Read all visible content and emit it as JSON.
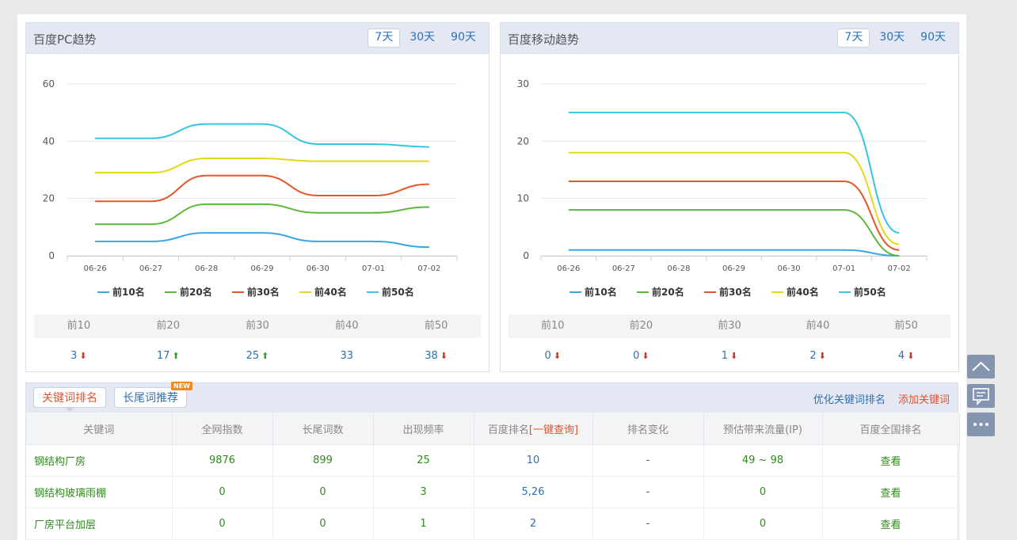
{
  "pc_panel": {
    "title": "百度PC趋势",
    "tabs": [
      "7天",
      "30天",
      "90天"
    ],
    "active_tab": 0,
    "summary_labels": [
      "前10",
      "前20",
      "前30",
      "前40",
      "前50"
    ],
    "summary_values": [
      {
        "value": "3",
        "trend": "down"
      },
      {
        "value": "17",
        "trend": "up"
      },
      {
        "value": "25",
        "trend": "up"
      },
      {
        "value": "33",
        "trend": "none"
      },
      {
        "value": "38",
        "trend": "down"
      }
    ]
  },
  "mobile_panel": {
    "title": "百度移动趋势",
    "tabs": [
      "7天",
      "30天",
      "90天"
    ],
    "active_tab": 0,
    "summary_labels": [
      "前10",
      "前20",
      "前30",
      "前40",
      "前50"
    ],
    "summary_values": [
      {
        "value": "0",
        "trend": "down"
      },
      {
        "value": "0",
        "trend": "down"
      },
      {
        "value": "1",
        "trend": "down"
      },
      {
        "value": "2",
        "trend": "down"
      },
      {
        "value": "4",
        "trend": "down"
      }
    ]
  },
  "chart_data": [
    {
      "type": "line",
      "x": [
        "06-26",
        "06-27",
        "06-28",
        "06-29",
        "06-30",
        "07-01",
        "07-02"
      ],
      "ylim": [
        0,
        60
      ],
      "yticks": [
        0,
        20,
        40,
        60
      ],
      "grid": true,
      "legend_position": "bottom",
      "series": [
        {
          "name": "前10名",
          "color": "#3aa7e0",
          "values": [
            5,
            5,
            8,
            8,
            5,
            5,
            3
          ]
        },
        {
          "name": "前20名",
          "color": "#5bb83a",
          "values": [
            11,
            11,
            18,
            18,
            15,
            15,
            17
          ]
        },
        {
          "name": "前30名",
          "color": "#e8552a",
          "values": [
            19,
            19,
            28,
            28,
            21,
            21,
            25
          ]
        },
        {
          "name": "前40名",
          "color": "#e2d81c",
          "values": [
            29,
            29,
            34,
            34,
            33,
            33,
            33
          ]
        },
        {
          "name": "前50名",
          "color": "#36c5e0",
          "values": [
            41,
            41,
            46,
            46,
            39,
            39,
            38
          ]
        }
      ]
    },
    {
      "type": "line",
      "x": [
        "06-26",
        "06-27",
        "06-28",
        "06-29",
        "06-30",
        "07-01",
        "07-02"
      ],
      "ylim": [
        0,
        30
      ],
      "yticks": [
        0,
        10,
        20,
        30
      ],
      "grid": true,
      "legend_position": "bottom",
      "series": [
        {
          "name": "前10名",
          "color": "#3aa7e0",
          "values": [
            1,
            1,
            1,
            1,
            1,
            1,
            0
          ]
        },
        {
          "name": "前20名",
          "color": "#5bb83a",
          "values": [
            8,
            8,
            8,
            8,
            8,
            8,
            0
          ]
        },
        {
          "name": "前30名",
          "color": "#e8552a",
          "values": [
            13,
            13,
            13,
            13,
            13,
            13,
            1
          ]
        },
        {
          "name": "前40名",
          "color": "#e2d81c",
          "values": [
            18,
            18,
            18,
            18,
            18,
            18,
            2
          ]
        },
        {
          "name": "前50名",
          "color": "#36c5e0",
          "values": [
            25,
            25,
            25,
            25,
            25,
            25,
            4
          ]
        }
      ]
    }
  ],
  "keywords": {
    "tab_active": "关键词排名",
    "tab_other": "长尾词推荐",
    "badge": "NEW",
    "link_optimize": "优化关键词排名",
    "link_add": "添加关键词",
    "headers": {
      "kw": "关键词",
      "index": "全网指数",
      "longtail": "长尾词数",
      "freq": "出现频率",
      "rank": "百度排名",
      "rank_query": "[一键查询]",
      "change": "排名变化",
      "traffic": "预估带来流量(IP)",
      "national": "百度全国排名"
    },
    "rows": [
      [
        "钢结构厂房",
        "9876",
        "899",
        "25",
        "10",
        "-",
        "49 ~ 98",
        "查看"
      ],
      [
        "钢结构玻璃雨棚",
        "0",
        "0",
        "3",
        "5,26",
        "-",
        "0",
        "查看"
      ],
      [
        "厂房平台加层",
        "0",
        "0",
        "1",
        "2",
        "-",
        "0",
        "查看"
      ]
    ]
  },
  "colors": {
    "accent_blue": "#2f6fb5",
    "accent_orange": "#e0532c",
    "green": "#2f8a1c",
    "header_bg": "#e3e8f3"
  },
  "side_icons": [
    "arrow-up-icon",
    "comment-icon",
    "more-icon"
  ]
}
